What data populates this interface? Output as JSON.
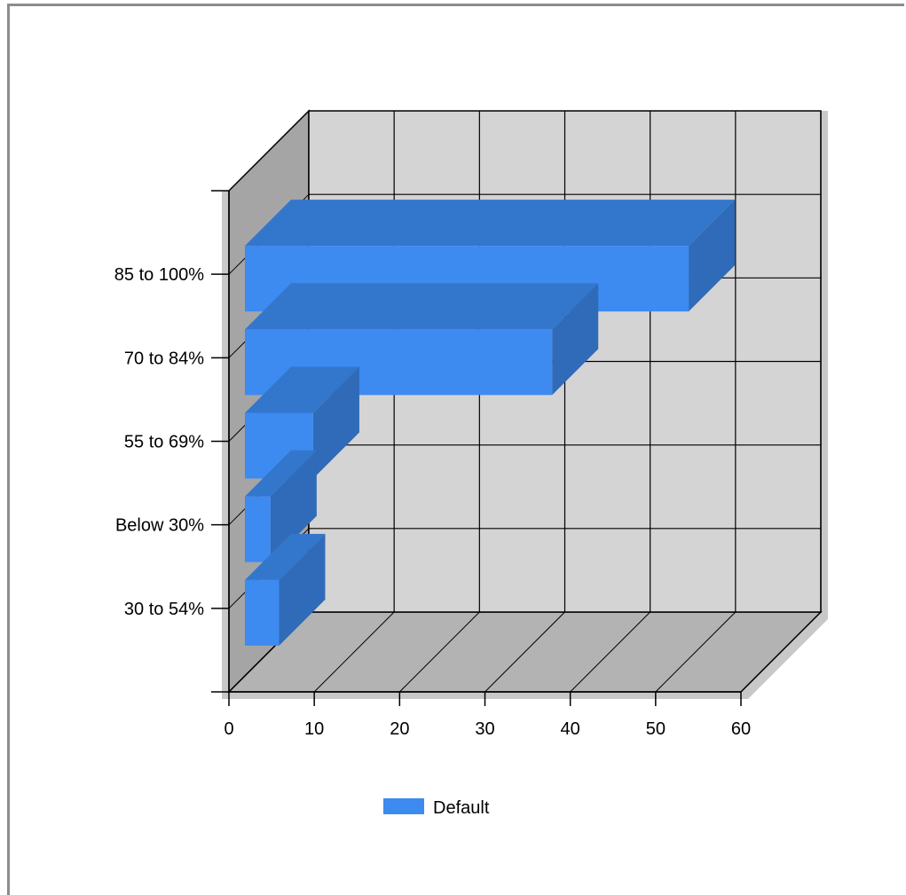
{
  "chart_data": {
    "type": "bar",
    "orientation": "horizontal",
    "three_d": true,
    "categories": [
      "30 to 54%",
      "Below 30%",
      "55 to 69%",
      "70 to 84%",
      "85 to 100%"
    ],
    "series": [
      {
        "name": "Default",
        "values": [
          4,
          3,
          8,
          36,
          52
        ]
      }
    ],
    "xlim": [
      0,
      60
    ],
    "x_ticks": [
      "0",
      "10",
      "20",
      "30",
      "40",
      "50",
      "60"
    ],
    "grid": true,
    "legend_position": "bottom-center",
    "colors": {
      "bar_front": "#3d8af0",
      "bar_top": "#3377cc",
      "bar_side": "#2f6bb8",
      "back_wall": "#d4d4d4",
      "side_wall": "#a5a5a5",
      "floor": "#b3b3b3",
      "wall_shadow": "#c8c8c8",
      "grid": "#000000"
    }
  }
}
